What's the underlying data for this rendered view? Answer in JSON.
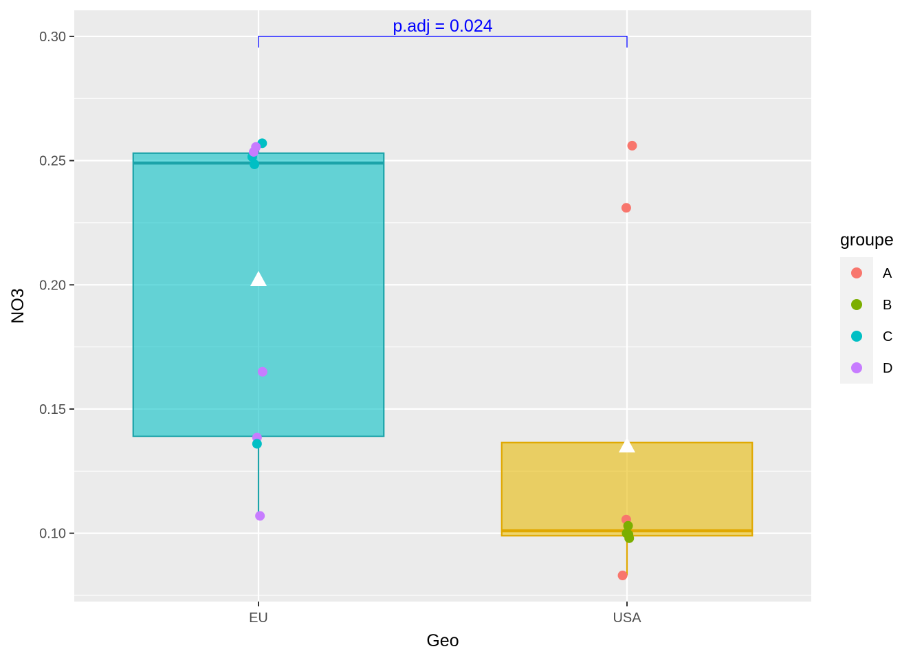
{
  "chart_data": {
    "type": "boxplot",
    "title": "",
    "xlabel": "Geo",
    "ylabel": "NO3",
    "categories": [
      "EU",
      "USA"
    ],
    "y_ticks": [
      0.1,
      0.15,
      0.2,
      0.25,
      0.3
    ],
    "y_tick_labels": [
      "0.10",
      "0.15",
      "0.20",
      "0.25",
      "0.30"
    ],
    "ylim": [
      0.0725,
      0.3105
    ],
    "grid": true,
    "legend": {
      "title": "groupe",
      "placement": "right",
      "entries": [
        {
          "label": "A",
          "color": "#F8766D"
        },
        {
          "label": "B",
          "color": "#7CAE00"
        },
        {
          "label": "C",
          "color": "#00BFC4"
        },
        {
          "label": "D",
          "color": "#C77CFF"
        }
      ]
    },
    "boxes": [
      {
        "category": "EU",
        "fill": "#00BFC4",
        "stroke": "#1BA3A9",
        "q1": 0.139,
        "median": 0.249,
        "q3": 0.253,
        "whisker_low": 0.107,
        "whisker_high": 0.257,
        "mean": 0.202
      },
      {
        "category": "USA",
        "fill": "#E7B800",
        "stroke": "#E0A800",
        "q1": 0.099,
        "median": 0.101,
        "q3": 0.1365,
        "whisker_low": 0.083,
        "whisker_high": 0.1365,
        "mean": 0.135
      }
    ],
    "points": [
      {
        "category": "EU",
        "group": "C",
        "y": 0.257,
        "jitter": 0.01
      },
      {
        "category": "EU",
        "group": "C",
        "y": 0.2515,
        "jitter": -0.017
      },
      {
        "category": "EU",
        "group": "C",
        "y": 0.2485,
        "jitter": -0.011
      },
      {
        "category": "EU",
        "group": "D",
        "y": 0.2555,
        "jitter": -0.007
      },
      {
        "category": "EU",
        "group": "D",
        "y": 0.2535,
        "jitter": -0.013
      },
      {
        "category": "EU",
        "group": "D",
        "y": 0.165,
        "jitter": 0.011
      },
      {
        "category": "EU",
        "group": "D",
        "y": 0.1385,
        "jitter": -0.004
      },
      {
        "category": "EU",
        "group": "C",
        "y": 0.136,
        "jitter": -0.004
      },
      {
        "category": "EU",
        "group": "D",
        "y": 0.107,
        "jitter": 0.004
      },
      {
        "category": "USA",
        "group": "A",
        "y": 0.256,
        "jitter": 0.014
      },
      {
        "category": "USA",
        "group": "A",
        "y": 0.231,
        "jitter": -0.002
      },
      {
        "category": "USA",
        "group": "A",
        "y": 0.1055,
        "jitter": -0.002
      },
      {
        "category": "USA",
        "group": "B",
        "y": 0.103,
        "jitter": 0.003
      },
      {
        "category": "USA",
        "group": "B",
        "y": 0.0995,
        "jitter": 0.004
      },
      {
        "category": "USA",
        "group": "B",
        "y": 0.098,
        "jitter": 0.006
      },
      {
        "category": "USA",
        "group": "B",
        "y": 0.1,
        "jitter": -0.001
      },
      {
        "category": "USA",
        "group": "A",
        "y": 0.083,
        "jitter": -0.012
      }
    ],
    "annotations": [
      {
        "text": "p.adj = 0.024",
        "from": "EU",
        "to": "USA",
        "y": 0.3,
        "tip_y": 0.2955,
        "color": "#0000FF"
      }
    ]
  }
}
